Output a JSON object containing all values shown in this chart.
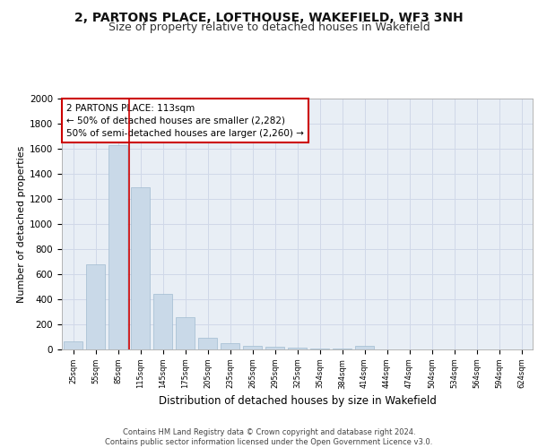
{
  "title1": "2, PARTONS PLACE, LOFTHOUSE, WAKEFIELD, WF3 3NH",
  "title2": "Size of property relative to detached houses in Wakefield",
  "xlabel": "Distribution of detached houses by size in Wakefield",
  "ylabel": "Number of detached properties",
  "bar_labels": [
    "25sqm",
    "55sqm",
    "85sqm",
    "115sqm",
    "145sqm",
    "175sqm",
    "205sqm",
    "235sqm",
    "265sqm",
    "295sqm",
    "325sqm",
    "354sqm",
    "384sqm",
    "414sqm",
    "444sqm",
    "474sqm",
    "504sqm",
    "534sqm",
    "564sqm",
    "594sqm",
    "624sqm"
  ],
  "bar_values": [
    65,
    680,
    1630,
    1290,
    445,
    255,
    90,
    50,
    30,
    20,
    15,
    10,
    5,
    30,
    0,
    0,
    0,
    0,
    0,
    0,
    0
  ],
  "bar_color": "#c9d9e8",
  "bar_edgecolor": "#a0bcd0",
  "vline_color": "#cc0000",
  "annotation_text": "2 PARTONS PLACE: 113sqm\n← 50% of detached houses are smaller (2,282)\n50% of semi-detached houses are larger (2,260) →",
  "annotation_box_color": "#ffffff",
  "annotation_box_edgecolor": "#cc0000",
  "ylim": [
    0,
    2000
  ],
  "yticks": [
    0,
    200,
    400,
    600,
    800,
    1000,
    1200,
    1400,
    1600,
    1800,
    2000
  ],
  "grid_color": "#d0d8e8",
  "background_color": "#e8eef5",
  "footer_text": "Contains HM Land Registry data © Crown copyright and database right 2024.\nContains public sector information licensed under the Open Government Licence v3.0.",
  "title1_fontsize": 10,
  "title2_fontsize": 9,
  "xlabel_fontsize": 8.5,
  "ylabel_fontsize": 8
}
